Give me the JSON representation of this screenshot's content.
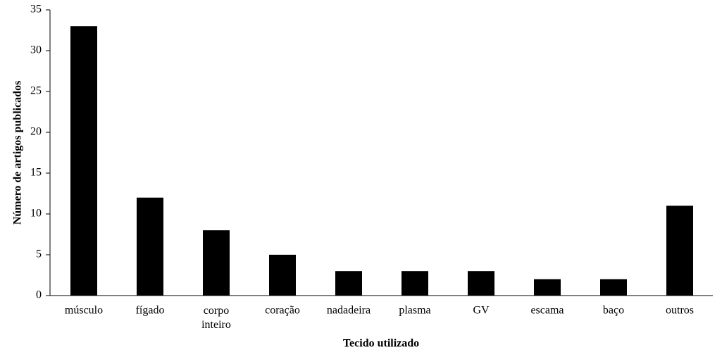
{
  "chart_data": {
    "type": "bar",
    "x_label": "Tecido utilizado",
    "y_label": "Número de artigos publicados",
    "categories": [
      "músculo",
      "fígado",
      "corpo inteiro",
      "coração",
      "nadadeira",
      "plasma",
      "GV",
      "escama",
      "baço",
      "outros"
    ],
    "values": [
      33,
      12,
      8,
      5,
      3,
      3,
      3,
      2,
      2,
      11
    ],
    "color": "#000000",
    "ylim": [
      0,
      35
    ],
    "yticks": [
      0,
      5,
      10,
      15,
      20,
      25,
      30,
      35
    ],
    "grid": false
  }
}
